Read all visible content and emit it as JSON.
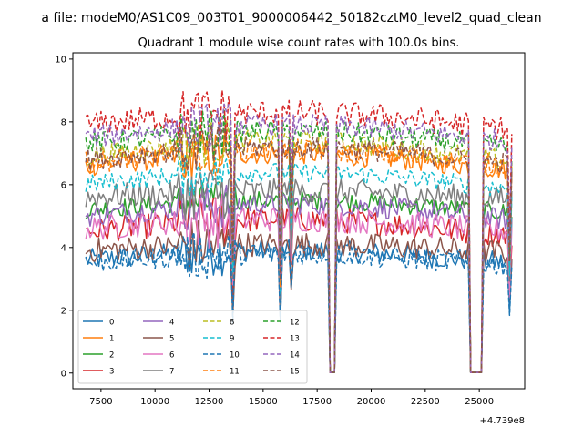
{
  "figure": {
    "suptitle": "a file: modeM0/AS1C09_003T01_9000006442_50182cztM0_level2_quad_clean"
  },
  "chart_data": {
    "type": "line",
    "title": "Quadrant 1 module wise count rates with 100.0s bins.",
    "xlabel": "",
    "ylabel": "",
    "x_offset_label": "+4.739e8",
    "xlim": [
      6200,
      27100
    ],
    "ylim": [
      -0.5,
      10.2
    ],
    "xticks": [
      7500,
      10000,
      12500,
      15000,
      17500,
      20000,
      22500,
      25000
    ],
    "xtick_labels": [
      "7500",
      "10000",
      "12500",
      "15000",
      "17500",
      "20000",
      "22500",
      "25000"
    ],
    "yticks": [
      0,
      2,
      4,
      6,
      8,
      10
    ],
    "ytick_labels": [
      "0",
      "2",
      "4",
      "6",
      "8",
      "10"
    ],
    "x_range": [
      6800,
      26500
    ],
    "x_step": 100,
    "gaps": [
      {
        "start": 18100,
        "end": 18300
      },
      {
        "start": 24600,
        "end": 25100
      }
    ],
    "dips": [
      {
        "x": 13600,
        "factor": 0.5
      },
      {
        "x": 15800,
        "factor": 0.4
      },
      {
        "x": 16300,
        "factor": 0.7
      },
      {
        "x": 26400,
        "factor": 0.55
      }
    ],
    "legend_position": "lower-left",
    "legend_columns": 4,
    "series": [
      {
        "name": "0",
        "color": "#1f77b4",
        "dash": "solid",
        "mean": 3.6,
        "amp": 0.35,
        "trend": 0.3
      },
      {
        "name": "1",
        "color": "#ff7f0e",
        "dash": "solid",
        "mean": 6.6,
        "amp": 0.35,
        "trend": 0.4
      },
      {
        "name": "2",
        "color": "#2ca02c",
        "dash": "solid",
        "mean": 5.2,
        "amp": 0.3,
        "trend": 0.3
      },
      {
        "name": "3",
        "color": "#d62728",
        "dash": "solid",
        "mean": 4.5,
        "amp": 0.4,
        "trend": 0.4
      },
      {
        "name": "4",
        "color": "#9467bd",
        "dash": "solid",
        "mean": 5.0,
        "amp": 0.35,
        "trend": 0.4
      },
      {
        "name": "5",
        "color": "#8c564b",
        "dash": "solid",
        "mean": 3.9,
        "amp": 0.4,
        "trend": 0.2
      },
      {
        "name": "6",
        "color": "#e377c2",
        "dash": "solid",
        "mean": 4.6,
        "amp": 0.4,
        "trend": 0.3
      },
      {
        "name": "7",
        "color": "#7f7f7f",
        "dash": "solid",
        "mean": 5.6,
        "amp": 0.4,
        "trend": 0.2
      },
      {
        "name": "8",
        "color": "#bcbd22",
        "dash": "dashed",
        "mean": 6.9,
        "amp": 0.35,
        "trend": 0.5
      },
      {
        "name": "9",
        "color": "#17becf",
        "dash": "dashed",
        "mean": 6.0,
        "amp": 0.3,
        "trend": 0.4
      },
      {
        "name": "10",
        "color": "#1f77b4",
        "dash": "dashed",
        "mean": 3.5,
        "amp": 0.35,
        "trend": 0.3
      },
      {
        "name": "11",
        "color": "#ff7f0e",
        "dash": "dashed",
        "mean": 6.7,
        "amp": 0.35,
        "trend": 0.4
      },
      {
        "name": "12",
        "color": "#2ca02c",
        "dash": "dashed",
        "mean": 7.3,
        "amp": 0.35,
        "trend": 0.4
      },
      {
        "name": "13",
        "color": "#d62728",
        "dash": "dashed",
        "mean": 7.9,
        "amp": 0.4,
        "trend": 0.4
      },
      {
        "name": "14",
        "color": "#9467bd",
        "dash": "dashed",
        "mean": 7.5,
        "amp": 0.35,
        "trend": 0.4
      },
      {
        "name": "15",
        "color": "#8c564b",
        "dash": "dashed",
        "mean": 6.8,
        "amp": 0.35,
        "trend": 0.4
      }
    ]
  }
}
